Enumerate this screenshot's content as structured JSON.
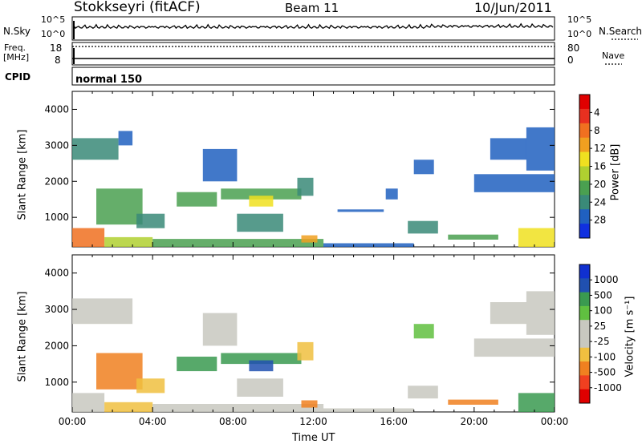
{
  "header": {
    "station": "Stokkseyri (fitACF)",
    "beam": "Beam 11",
    "date": "10/Jun/2011"
  },
  "top_panels": {
    "nsky_label": "N.Sky",
    "nsky_ticks": [
      "10^5",
      "10^0"
    ],
    "nsearch_label": "N.Search",
    "nsearch_ticks": [
      "10^5",
      "10^0"
    ],
    "freq_label": "Freq.",
    "freq_unit": "[MHz]",
    "freq_ticks": [
      "18",
      "8"
    ],
    "nave_label": "Nave",
    "nave_ticks": [
      "80",
      "0"
    ],
    "cpid_label": "CPID",
    "cpid_value": "normal 150"
  },
  "colors": {
    "power": [
      "#1030e0",
      "#2060c0",
      "#3a8a78",
      "#4aa050",
      "#b0d030",
      "#f0e020",
      "#f0a020",
      "#f07020",
      "#e83020",
      "#e00000"
    ],
    "velocity": [
      "#e00000",
      "#f04020",
      "#f08020",
      "#f0c040",
      "#c8c8c0",
      "#c8c8c0",
      "#60c040",
      "#3a9a50",
      "#2050b0",
      "#1030d0"
    ]
  },
  "chart_data": [
    {
      "type": "heatmap",
      "name": "power-panel",
      "ylabel": "Slant Range [km]",
      "ylim": [
        180,
        4500
      ],
      "yticks": [
        "1000",
        "2000",
        "3000",
        "4000"
      ],
      "xticks": [
        "00:00",
        "04:00",
        "08:00",
        "12:00",
        "16:00",
        "20:00",
        "00:00"
      ],
      "colorbar_label": "Power [dB]",
      "colorbar_ticks": [
        "4",
        "8",
        "12",
        "16",
        "20",
        "24",
        "28"
      ],
      "regions": [
        {
          "t0": 0.0,
          "t1": 2.3,
          "r0": 2600,
          "r1": 3200,
          "level": 2
        },
        {
          "t0": 2.3,
          "t1": 3.0,
          "r0": 3000,
          "r1": 3400,
          "level": 1
        },
        {
          "t0": 0.0,
          "t1": 1.6,
          "r0": 180,
          "r1": 700,
          "level": 7
        },
        {
          "t0": 1.6,
          "t1": 4.0,
          "r0": 180,
          "r1": 450,
          "level": 4
        },
        {
          "t0": 1.2,
          "t1": 3.5,
          "r0": 800,
          "r1": 1800,
          "level": 3
        },
        {
          "t0": 3.2,
          "t1": 4.6,
          "r0": 700,
          "r1": 1100,
          "level": 2
        },
        {
          "t0": 5.2,
          "t1": 7.2,
          "r0": 1300,
          "r1": 1700,
          "level": 3
        },
        {
          "t0": 6.5,
          "t1": 8.2,
          "r0": 2000,
          "r1": 2900,
          "level": 1
        },
        {
          "t0": 7.4,
          "t1": 11.4,
          "r0": 1500,
          "r1": 1800,
          "level": 3
        },
        {
          "t0": 8.8,
          "t1": 10.0,
          "r0": 1300,
          "r1": 1600,
          "level": 5
        },
        {
          "t0": 8.2,
          "t1": 10.5,
          "r0": 600,
          "r1": 1100,
          "level": 2
        },
        {
          "t0": 4.0,
          "t1": 12.5,
          "r0": 180,
          "r1": 400,
          "level": 3
        },
        {
          "t0": 11.4,
          "t1": 12.2,
          "r0": 300,
          "r1": 500,
          "level": 6
        },
        {
          "t0": 11.2,
          "t1": 12.0,
          "r0": 1600,
          "r1": 2100,
          "level": 2
        },
        {
          "t0": 13.2,
          "t1": 15.5,
          "r0": 1150,
          "r1": 1220,
          "level": 1
        },
        {
          "t0": 12.5,
          "t1": 17.0,
          "r0": 180,
          "r1": 280,
          "level": 1
        },
        {
          "t0": 15.6,
          "t1": 16.2,
          "r0": 1500,
          "r1": 1800,
          "level": 1
        },
        {
          "t0": 16.7,
          "t1": 18.2,
          "r0": 550,
          "r1": 900,
          "level": 2
        },
        {
          "t0": 17.0,
          "t1": 18.0,
          "r0": 2200,
          "r1": 2600,
          "level": 1
        },
        {
          "t0": 18.7,
          "t1": 21.2,
          "r0": 380,
          "r1": 520,
          "level": 3
        },
        {
          "t0": 20.0,
          "t1": 24.0,
          "r0": 1700,
          "r1": 2200,
          "level": 1
        },
        {
          "t0": 20.8,
          "t1": 22.6,
          "r0": 2600,
          "r1": 3200,
          "level": 1
        },
        {
          "t0": 22.6,
          "t1": 24.0,
          "r0": 2300,
          "r1": 3500,
          "level": 1
        },
        {
          "t0": 22.2,
          "t1": 24.0,
          "r0": 180,
          "r1": 700,
          "level": 5
        }
      ]
    },
    {
      "type": "heatmap",
      "name": "velocity-panel",
      "ylabel": "Slant Range [km]",
      "ylim": [
        180,
        4500
      ],
      "yticks": [
        "1000",
        "2000",
        "3000",
        "4000"
      ],
      "xticks": [
        "00:00",
        "04:00",
        "08:00",
        "12:00",
        "16:00",
        "20:00",
        "00:00"
      ],
      "xlabel": "Time UT",
      "colorbar_label": "Velocity [m s⁻¹]",
      "colorbar_ticks": [
        "1000",
        "500",
        "100",
        "25",
        "-25",
        "-100",
        "-500",
        "-1000"
      ],
      "regions": [
        {
          "t0": 0.0,
          "t1": 3.0,
          "r0": 2600,
          "r1": 3300,
          "level": 4
        },
        {
          "t0": 0.0,
          "t1": 1.6,
          "r0": 180,
          "r1": 700,
          "level": 4
        },
        {
          "t0": 1.6,
          "t1": 4.0,
          "r0": 180,
          "r1": 450,
          "level": 3
        },
        {
          "t0": 1.2,
          "t1": 3.5,
          "r0": 800,
          "r1": 1800,
          "level": 2
        },
        {
          "t0": 3.2,
          "t1": 4.6,
          "r0": 700,
          "r1": 1100,
          "level": 3
        },
        {
          "t0": 5.2,
          "t1": 7.2,
          "r0": 1300,
          "r1": 1700,
          "level": 7
        },
        {
          "t0": 6.5,
          "t1": 8.2,
          "r0": 2000,
          "r1": 2900,
          "level": 4
        },
        {
          "t0": 7.4,
          "t1": 11.4,
          "r0": 1500,
          "r1": 1800,
          "level": 7
        },
        {
          "t0": 8.8,
          "t1": 10.0,
          "r0": 1300,
          "r1": 1600,
          "level": 8
        },
        {
          "t0": 8.2,
          "t1": 10.5,
          "r0": 600,
          "r1": 1100,
          "level": 4
        },
        {
          "t0": 4.0,
          "t1": 12.5,
          "r0": 180,
          "r1": 400,
          "level": 4
        },
        {
          "t0": 11.4,
          "t1": 12.2,
          "r0": 300,
          "r1": 500,
          "level": 2
        },
        {
          "t0": 11.2,
          "t1": 12.0,
          "r0": 1600,
          "r1": 2100,
          "level": 3
        },
        {
          "t0": 12.5,
          "t1": 17.0,
          "r0": 180,
          "r1": 280,
          "level": 4
        },
        {
          "t0": 16.7,
          "t1": 18.2,
          "r0": 550,
          "r1": 900,
          "level": 4
        },
        {
          "t0": 17.0,
          "t1": 18.0,
          "r0": 2200,
          "r1": 2600,
          "level": 6
        },
        {
          "t0": 18.7,
          "t1": 21.2,
          "r0": 380,
          "r1": 520,
          "level": 2
        },
        {
          "t0": 20.0,
          "t1": 24.0,
          "r0": 1700,
          "r1": 2200,
          "level": 4
        },
        {
          "t0": 20.8,
          "t1": 22.6,
          "r0": 2600,
          "r1": 3200,
          "level": 4
        },
        {
          "t0": 22.6,
          "t1": 24.0,
          "r0": 2300,
          "r1": 3500,
          "level": 5
        },
        {
          "t0": 22.2,
          "t1": 24.0,
          "r0": 180,
          "r1": 700,
          "level": 7
        }
      ]
    }
  ]
}
